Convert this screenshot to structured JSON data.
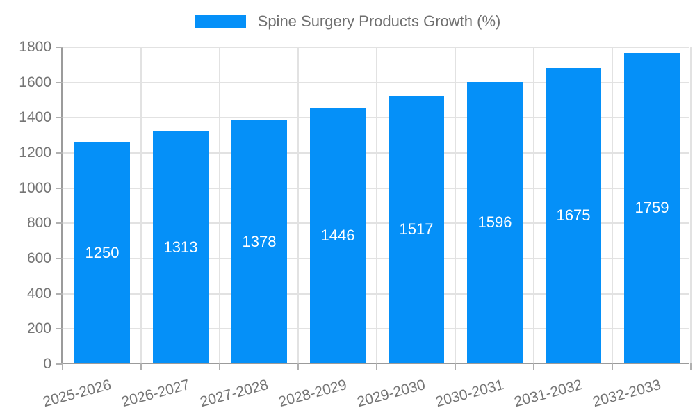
{
  "chart_data": {
    "type": "bar",
    "title": "Spine Surgery Products Growth (%)",
    "categories": [
      "2025-2026",
      "2026-2027",
      "2027-2028",
      "2028-2029",
      "2029-2030",
      "2030-2031",
      "2031-2032",
      "2032-2033"
    ],
    "values": [
      1250,
      1313,
      1378,
      1446,
      1517,
      1596,
      1675,
      1759
    ],
    "xlabel": "",
    "ylabel": "",
    "ylim": [
      0,
      1800
    ],
    "yticks": [
      0,
      200,
      400,
      600,
      800,
      1000,
      1200,
      1400,
      1600,
      1800
    ],
    "grid": true,
    "legend_position": "top",
    "bar_color": "#0590f8",
    "value_label_color": "#ffffff",
    "axis_text_color": "#757575",
    "legend_text_color": "#6f6f6f",
    "gridline_color": "#e2e2e2",
    "axis_line_color": "#9b9b9b",
    "tick_mark_color": "#b0b0b0"
  }
}
